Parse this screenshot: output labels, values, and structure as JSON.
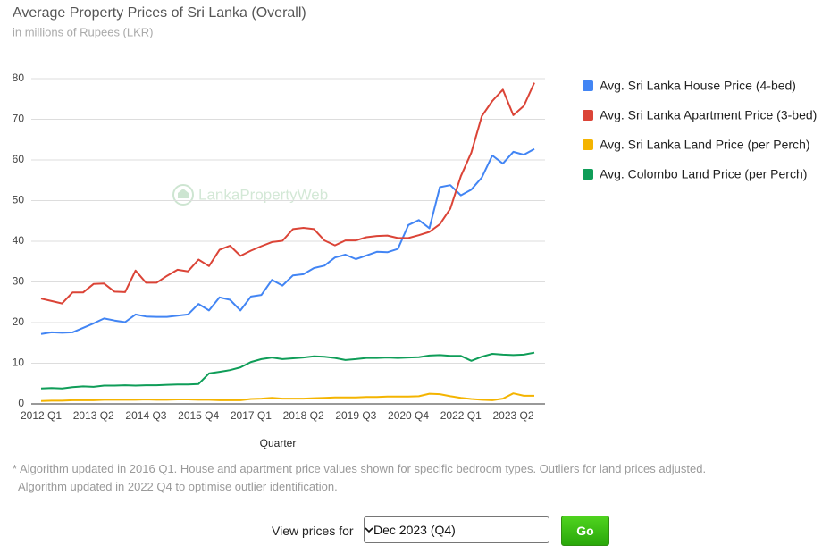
{
  "chart_data": {
    "type": "line",
    "title": "Average Property Prices of Sri Lanka (Overall)",
    "subtitle": "in millions of Rupees (LKR)",
    "watermark": "LankaPropertyWeb",
    "x_label": "Quarter",
    "categories": [
      "2012 Q1",
      null,
      null,
      null,
      null,
      "2013 Q2",
      null,
      null,
      null,
      null,
      "2014 Q3",
      null,
      null,
      null,
      null,
      "2015 Q4",
      null,
      null,
      null,
      null,
      "2017 Q1",
      null,
      null,
      null,
      null,
      "2018 Q2",
      null,
      null,
      null,
      null,
      "2019 Q3",
      null,
      null,
      null,
      null,
      "2020 Q4",
      null,
      null,
      null,
      null,
      "2022 Q1",
      null,
      null,
      null,
      null,
      "2023 Q2",
      null,
      null
    ],
    "series": [
      {
        "name": "Avg. Sri Lanka House Price (4-bed)",
        "color": "#4285f4",
        "values": [
          17.2,
          17.6,
          17.5,
          17.6,
          18.7,
          19.8,
          21.0,
          20.5,
          20.1,
          22.0,
          21.5,
          21.4,
          21.4,
          21.7,
          22.0,
          24.6,
          23.0,
          26.2,
          25.6,
          23.0,
          26.4,
          26.8,
          30.5,
          29.1,
          31.6,
          31.9,
          33.4,
          34.0,
          36.0,
          36.7,
          35.6,
          36.5,
          37.4,
          37.3,
          38.1,
          44.0,
          45.2,
          43.2,
          53.3,
          53.8,
          51.3,
          52.7,
          55.7,
          61.1,
          59.1,
          62.0,
          61.3,
          62.7
        ]
      },
      {
        "name": "Avg. Sri Lanka Apartment Price (3-bed)",
        "color": "#db4437",
        "values": [
          25.9,
          25.3,
          24.7,
          27.4,
          27.4,
          29.5,
          29.6,
          27.6,
          27.5,
          32.8,
          29.8,
          29.8,
          31.5,
          33.0,
          32.6,
          35.5,
          33.9,
          37.9,
          38.9,
          36.4,
          37.7,
          38.8,
          39.8,
          40.1,
          43.0,
          43.3,
          43.0,
          40.2,
          39.0,
          40.2,
          40.2,
          41.0,
          41.3,
          41.4,
          40.8,
          40.8,
          41.5,
          42.3,
          44.2,
          48.0,
          56.0,
          61.8,
          70.8,
          74.5,
          77.3,
          71.0,
          73.3,
          79.0
        ]
      },
      {
        "name": "Avg. Sri Lanka Land Price (per Perch)",
        "color": "#f4b400",
        "values": [
          0.7,
          0.8,
          0.8,
          0.9,
          0.9,
          0.9,
          1.0,
          1.0,
          1.0,
          1.0,
          1.1,
          1.0,
          1.0,
          1.1,
          1.1,
          1.0,
          1.0,
          0.9,
          0.9,
          0.9,
          1.2,
          1.3,
          1.5,
          1.3,
          1.3,
          1.3,
          1.4,
          1.5,
          1.6,
          1.6,
          1.6,
          1.7,
          1.7,
          1.8,
          1.8,
          1.8,
          1.9,
          2.5,
          2.4,
          1.9,
          1.5,
          1.2,
          1.0,
          0.9,
          1.3,
          2.6,
          2.0,
          2.0
        ]
      },
      {
        "name": "Avg. Colombo Land Price (per Perch)",
        "color": "#0f9d58",
        "values": [
          3.8,
          3.9,
          3.8,
          4.1,
          4.3,
          4.2,
          4.5,
          4.5,
          4.6,
          4.5,
          4.6,
          4.6,
          4.7,
          4.8,
          4.8,
          4.9,
          7.5,
          7.9,
          8.3,
          9.0,
          10.3,
          11.0,
          11.4,
          11.0,
          11.2,
          11.4,
          11.7,
          11.6,
          11.3,
          10.8,
          11.0,
          11.3,
          11.3,
          11.4,
          11.3,
          11.4,
          11.5,
          11.9,
          12.0,
          11.8,
          11.8,
          10.6,
          11.6,
          12.3,
          12.1,
          12.0,
          12.1,
          12.6
        ]
      }
    ],
    "ylim": [
      0,
      80
    ],
    "yticks": [
      0,
      10,
      20,
      30,
      40,
      50,
      60,
      70,
      80
    ],
    "grid": true,
    "legend": "right"
  },
  "footnote": [
    "* Algorithm updated in 2016 Q1. House and apartment price values shown for specific bedroom types. Outliers for land prices adjusted.",
    "Algorithm updated in 2022 Q4 to optimise outlier identification."
  ],
  "controls": {
    "label": "View prices for",
    "selected": "Dec 2023 (Q4)",
    "button": "Go"
  }
}
